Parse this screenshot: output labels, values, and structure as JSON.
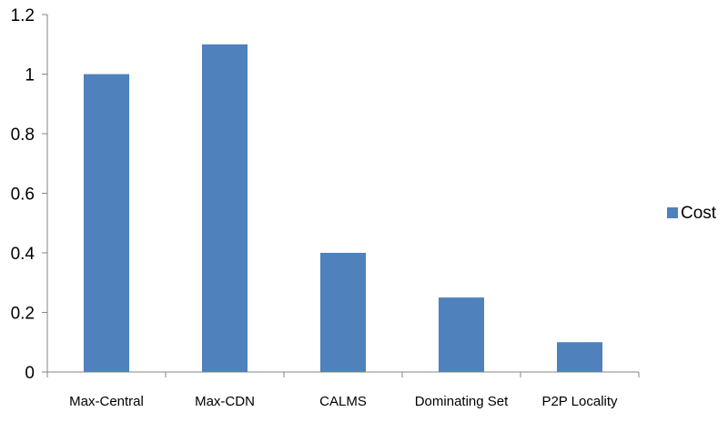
{
  "chart_data": {
    "type": "bar",
    "categories": [
      "Max-Central",
      "Max-CDN",
      "CALMS",
      "Dominating Set",
      "P2P Locality"
    ],
    "series": [
      {
        "name": "Cost",
        "values": [
          1.0,
          1.1,
          0.4,
          0.25,
          0.1
        ],
        "color": "#4f81bd"
      }
    ],
    "y_ticks": [
      "0",
      "0.2",
      "0.4",
      "0.6",
      "0.8",
      "1",
      "1.2"
    ],
    "ylim": [
      0,
      1.2
    ],
    "grid": false,
    "legend_position": "right"
  }
}
